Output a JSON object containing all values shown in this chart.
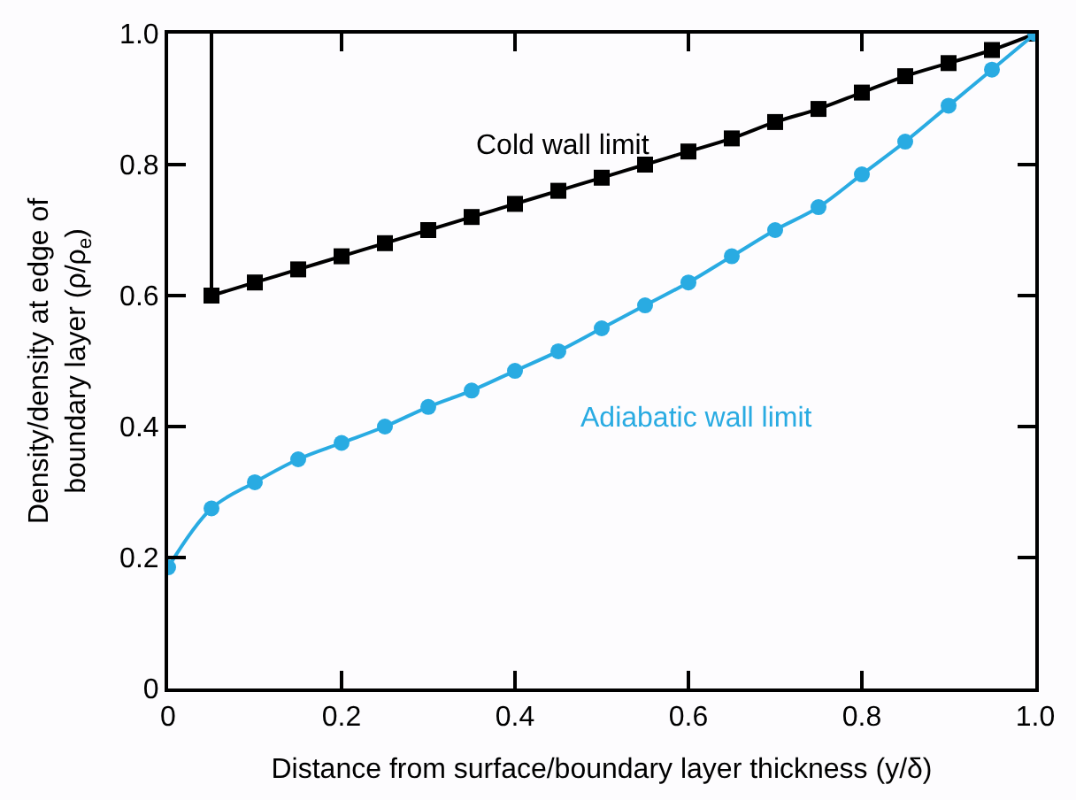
{
  "chart_data": {
    "type": "line",
    "xlabel": "Distance from surface/boundary layer thickness (y/δ)",
    "ylabel": "Density/density at edge of\nboundary layer (ρ/ρ$_{e}$)",
    "xlim": [
      0,
      1.0
    ],
    "ylim": [
      0,
      1.0
    ],
    "xticks": [
      0,
      0.2,
      0.4,
      0.6,
      0.8,
      {
        "value": 1.0,
        "label": "1.0"
      }
    ],
    "yticks": [
      0,
      0.2,
      0.4,
      0.6,
      0.8,
      {
        "value": 1.0,
        "label": "1.0"
      }
    ],
    "series": [
      {
        "name": "Cold wall limit",
        "color": "#000000",
        "marker": "square",
        "x": [
          0.05,
          0.1,
          0.15,
          0.2,
          0.25,
          0.3,
          0.35,
          0.4,
          0.45,
          0.5,
          0.55,
          0.6,
          0.65,
          0.7,
          0.75,
          0.8,
          0.85,
          0.9,
          0.95,
          1.0
        ],
        "values": [
          0.6,
          0.62,
          0.64,
          0.66,
          0.68,
          0.7,
          0.72,
          0.74,
          0.76,
          0.78,
          0.8,
          0.82,
          0.84,
          0.865,
          0.885,
          0.91,
          0.935,
          0.955,
          0.975,
          1.0
        ]
      },
      {
        "color": "#000000",
        "marker": "none",
        "x": [
          0.05,
          0.05
        ],
        "values": [
          0.6,
          1.0
        ]
      },
      {
        "name": "Adiabatic wall limit",
        "color": "#29abe2",
        "marker": "circle",
        "x": [
          0,
          0.05,
          0.1,
          0.15,
          0.2,
          0.25,
          0.3,
          0.35,
          0.4,
          0.45,
          0.5,
          0.55,
          0.6,
          0.65,
          0.7,
          0.75,
          0.8,
          0.85,
          0.9,
          0.95,
          1.0
        ],
        "values": [
          0.185,
          0.275,
          0.315,
          0.35,
          0.375,
          0.4,
          0.43,
          0.455,
          0.485,
          0.515,
          0.55,
          0.585,
          0.62,
          0.66,
          0.7,
          0.735,
          0.785,
          0.835,
          0.89,
          0.945,
          1.0
        ]
      }
    ]
  }
}
